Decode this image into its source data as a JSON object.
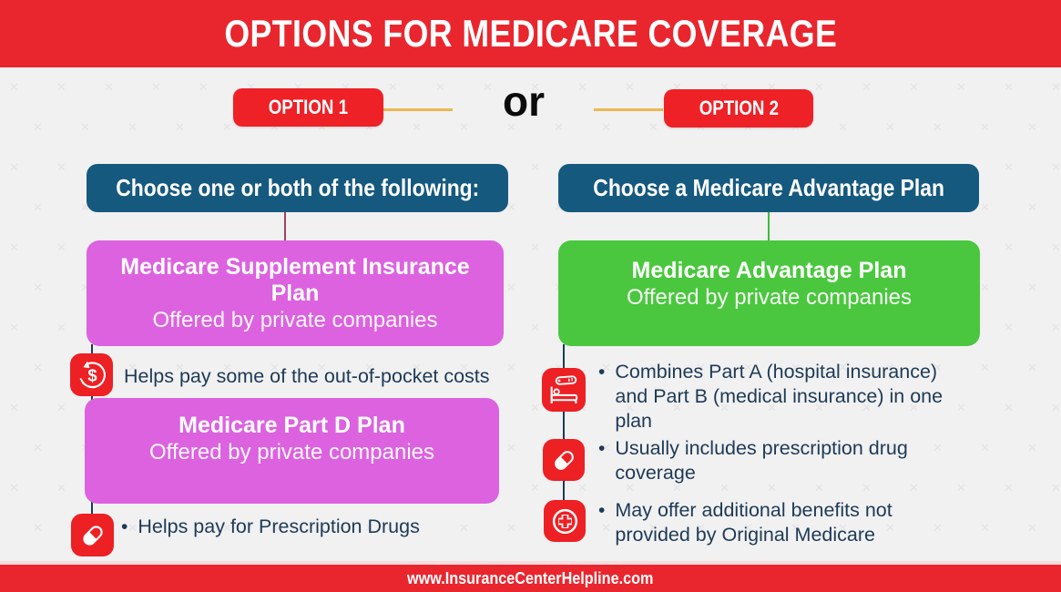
{
  "header": {
    "title": "OPTIONS FOR MEDICARE COVERAGE"
  },
  "options": {
    "option1_label": "OPTION 1",
    "connector_text": "or",
    "option2_label": "OPTION 2"
  },
  "left_column": {
    "header": "Choose one or both of the following:",
    "supplement_box": {
      "title": "Medicare Supplement Insurance Plan",
      "subtitle": "Offered by private companies"
    },
    "supplement_note": "Helps pay some of the out-of-pocket costs",
    "partd_box": {
      "title": "Medicare Part D Plan",
      "subtitle": "Offered by private companies"
    },
    "partd_note": "Helps pay for Prescription Drugs",
    "bullet_char": "•"
  },
  "right_column": {
    "header": "Choose a Medicare Advantage Plan",
    "advantage_box": {
      "title": "Medicare Advantage Plan",
      "subtitle": "Offered by private companies"
    },
    "bullets": [
      "Combines Part A (hospital insurance) and Part B (medical insurance) in one plan",
      "Usually includes prescription drug coverage",
      "May offer additional benefits not provided by Original Medicare"
    ],
    "bullet_char": "•"
  },
  "footer": {
    "website": "www.InsuranceCenterHelpline.com"
  },
  "icons": {
    "money_back": "money-back-icon",
    "pill": "pill-icon",
    "hospital_bed": "hospital-bed-icon",
    "medical_plus": "medical-plus-icon"
  },
  "colors": {
    "brand_red": "#E9262E",
    "header_blue": "#16597F",
    "plan_purple": "#DC62E0",
    "plan_green": "#4AC73E",
    "text_navy": "#1E3A56",
    "connector_gold": "#EBB850",
    "connector_maroon": "#A23F66",
    "background": "#F1F1F2"
  }
}
